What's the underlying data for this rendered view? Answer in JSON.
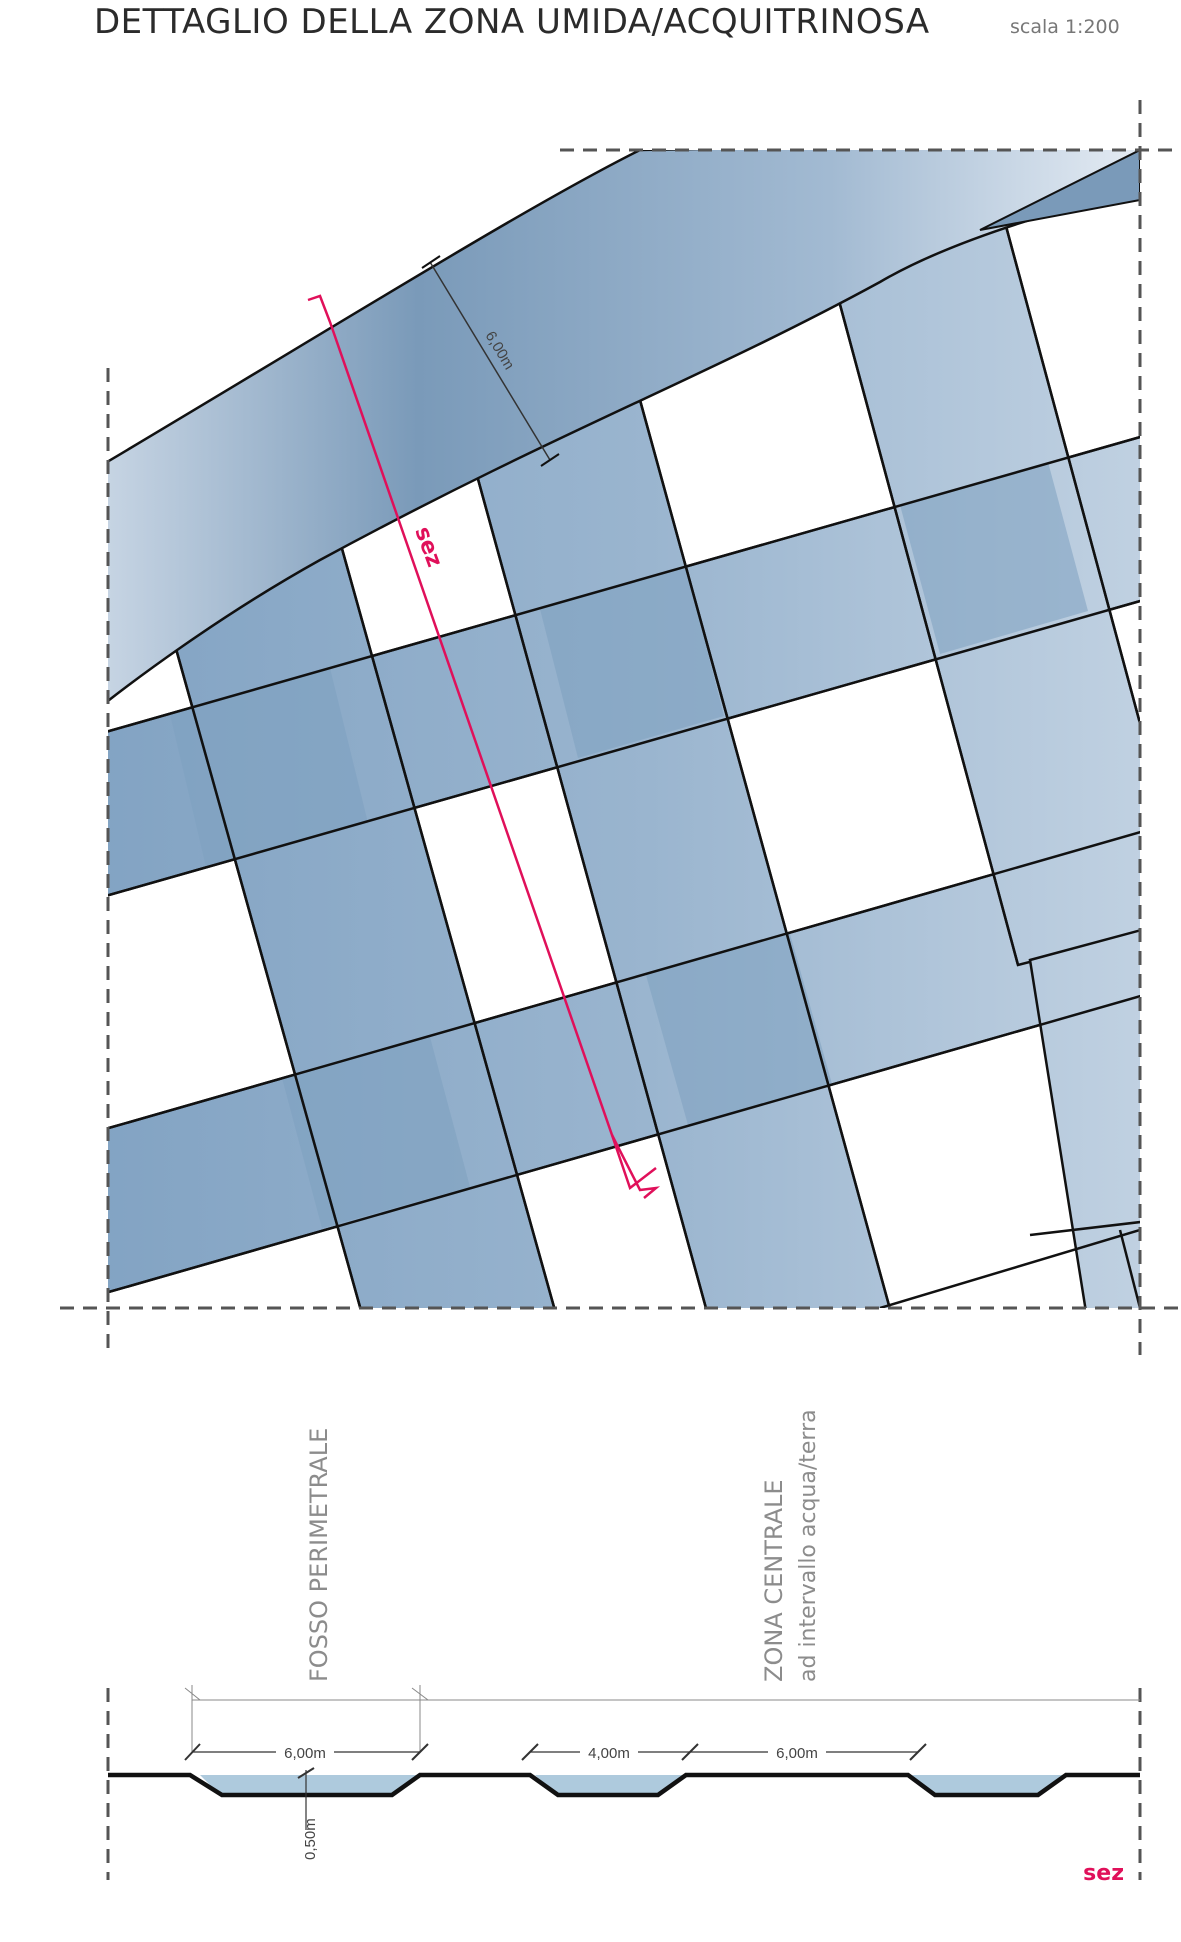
{
  "title": {
    "main": "DETTAGLIO DELLA ZONA UMIDA/ACQUITRINOSA",
    "scale": "scala 1:200"
  },
  "plan": {
    "channel_width_label": "6,00m",
    "section_marker_label": "sez"
  },
  "zones": {
    "perimeter": "FOSSO PERIMETRALE",
    "central": "ZONA CENTRALE",
    "central_sub": "ad intervallo acqua/terra"
  },
  "section": {
    "dim_perimeter_width": "6,00m",
    "dim_depth": "0,50m",
    "dim_channel": "4,00m",
    "dim_land": "6,00m",
    "marker_label": "sez"
  },
  "colors": {
    "water_dark": "#7a9cbd",
    "water_light": "#dfe7f0",
    "section_line": "#e0105a",
    "outline": "#111111",
    "border_dash": "#555555"
  }
}
